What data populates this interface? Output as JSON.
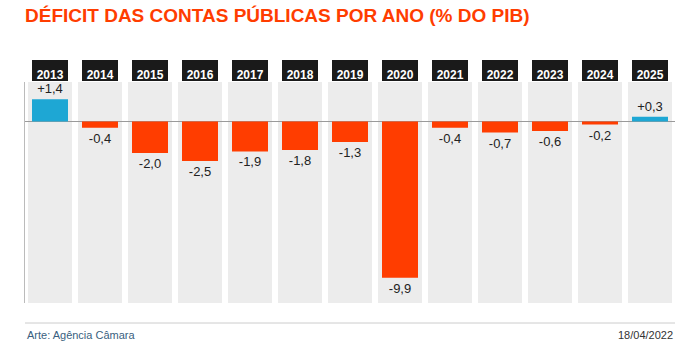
{
  "chart_data": {
    "type": "bar",
    "title": "DÉFICIT DAS CONTAS PÚBLICAS POR ANO (% DO PIB)",
    "categories": [
      "2013",
      "2014",
      "2015",
      "2016",
      "2017",
      "2018",
      "2019",
      "2020",
      "2021",
      "2022",
      "2023",
      "2024",
      "2025"
    ],
    "values": [
      1.4,
      -0.4,
      -2.0,
      -2.5,
      -1.9,
      -1.8,
      -1.3,
      -9.9,
      -0.4,
      -0.7,
      -0.6,
      -0.2,
      0.3
    ],
    "value_labels": [
      "+1,4",
      "-0,4",
      "-2,0",
      "-2,5",
      "-1,9",
      "-1,8",
      "-1,3",
      "-9,9",
      "-0,4",
      "-0,7",
      "-0,6",
      "-0,2",
      "+0,3"
    ],
    "colors": [
      "#1ea7d4",
      "#ff3d00",
      "#ff3d00",
      "#ff3d00",
      "#ff3d00",
      "#ff3d00",
      "#ff3d00",
      "#ff3d00",
      "#ff3d00",
      "#ff3d00",
      "#ff3d00",
      "#ff3d00",
      "#1ea7d4"
    ],
    "ylim": [
      -11.5,
      2.5
    ],
    "grid": false,
    "data_labels": true,
    "tick_labels": "x",
    "annotations": [
      "Arte: Agência Câmara",
      "18/04/2022"
    ]
  }
}
